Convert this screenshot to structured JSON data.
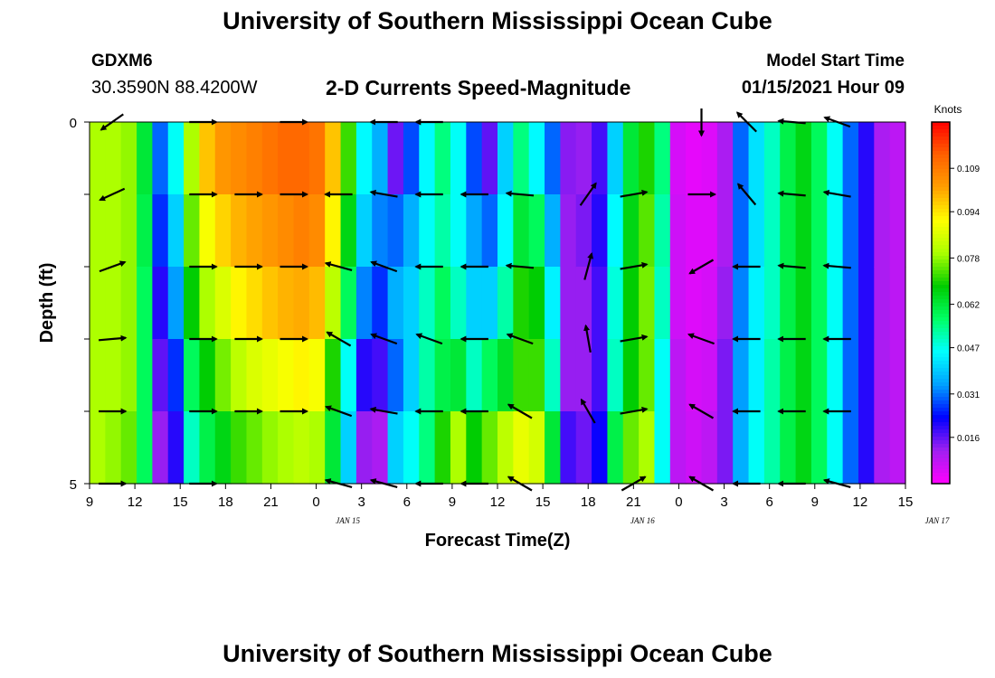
{
  "header": {
    "title": "University of Southern Mississippi Ocean Cube",
    "station": "GDXM6",
    "coordinates": "30.3590N 88.4200W",
    "subtitle": "2-D Currents Speed-Magnitude",
    "model_start_label": "Model Start Time",
    "model_start_value": "01/15/2021 Hour 09"
  },
  "footer": {
    "title": "University of Southern Mississippi Ocean Cube"
  },
  "chart_data": {
    "type": "heatmap",
    "title": "2-D Currents Speed-Magnitude",
    "xlabel": "Forecast Time(Z)",
    "ylabel": "Depth (ft)",
    "x_tick_labels": [
      "9",
      "12",
      "15",
      "18",
      "21",
      "0",
      "3",
      "6",
      "9",
      "12",
      "15",
      "18",
      "21",
      "0",
      "3",
      "6",
      "9",
      "12",
      "15"
    ],
    "date_labels": [
      {
        "label": "JAN 15",
        "at_hour": 16.5
      },
      {
        "label": "JAN 16",
        "at_hour": 36
      },
      {
        "label": "JAN 17",
        "at_hour": 55.5
      }
    ],
    "xlim_hours": [
      0,
      54
    ],
    "y_tick_labels": [
      "0",
      "5"
    ],
    "ylim": [
      0,
      5
    ],
    "depth_layers": 5,
    "colorbar": {
      "unit": "Knots",
      "range": [
        0,
        0.125
      ],
      "tick_labels": [
        "0.109",
        "0.094",
        "0.078",
        "0.062",
        "0.047",
        "0.031",
        "0.016"
      ],
      "colors": [
        "#ff00ff",
        "#a020f0",
        "#0000ff",
        "#00a0ff",
        "#00ffff",
        "#00ff66",
        "#00cc00",
        "#aaff00",
        "#ffff00",
        "#ffa000",
        "#ff6000",
        "#ff0000"
      ]
    },
    "speed_columns": [
      [
        0.08,
        0.08,
        0.08,
        0.08,
        0.08
      ],
      [
        0.08,
        0.08,
        0.08,
        0.08,
        0.078
      ],
      [
        0.078,
        0.078,
        0.078,
        0.078,
        0.075
      ],
      [
        0.062,
        0.06,
        0.058,
        0.058,
        0.058
      ],
      [
        0.03,
        0.026,
        0.02,
        0.016,
        0.012
      ],
      [
        0.046,
        0.04,
        0.034,
        0.026,
        0.02
      ],
      [
        0.08,
        0.075,
        0.068,
        0.058,
        0.05
      ],
      [
        0.098,
        0.09,
        0.08,
        0.068,
        0.06
      ],
      [
        0.104,
        0.096,
        0.086,
        0.076,
        0.066
      ],
      [
        0.106,
        0.1,
        0.092,
        0.082,
        0.072
      ],
      [
        0.108,
        0.102,
        0.095,
        0.086,
        0.075
      ],
      [
        0.11,
        0.104,
        0.098,
        0.088,
        0.078
      ],
      [
        0.112,
        0.106,
        0.1,
        0.09,
        0.08
      ],
      [
        0.112,
        0.108,
        0.101,
        0.092,
        0.082
      ],
      [
        0.11,
        0.106,
        0.099,
        0.09,
        0.08
      ],
      [
        0.098,
        0.092,
        0.082,
        0.07,
        0.062
      ],
      [
        0.072,
        0.066,
        0.058,
        0.046,
        0.04
      ],
      [
        0.045,
        0.04,
        0.032,
        0.02,
        0.012
      ],
      [
        0.036,
        0.032,
        0.026,
        0.018,
        0.01
      ],
      [
        0.015,
        0.03,
        0.036,
        0.03,
        0.04
      ],
      [
        0.028,
        0.036,
        0.04,
        0.04,
        0.046
      ],
      [
        0.045,
        0.046,
        0.05,
        0.052,
        0.055
      ],
      [
        0.055,
        0.052,
        0.058,
        0.06,
        0.07
      ],
      [
        0.046,
        0.046,
        0.05,
        0.062,
        0.08
      ],
      [
        0.028,
        0.035,
        0.04,
        0.05,
        0.068
      ],
      [
        0.016,
        0.03,
        0.04,
        0.058,
        0.075
      ],
      [
        0.04,
        0.045,
        0.052,
        0.064,
        0.082
      ],
      [
        0.055,
        0.062,
        0.07,
        0.072,
        0.088
      ],
      [
        0.045,
        0.058,
        0.068,
        0.072,
        0.085
      ],
      [
        0.03,
        0.036,
        0.044,
        0.05,
        0.062
      ],
      [
        0.013,
        0.012,
        0.012,
        0.012,
        0.018
      ],
      [
        0.012,
        0.014,
        0.012,
        0.012,
        0.015
      ],
      [
        0.018,
        0.02,
        0.018,
        0.018,
        0.022
      ],
      [
        0.04,
        0.045,
        0.048,
        0.05,
        0.06
      ],
      [
        0.062,
        0.066,
        0.068,
        0.068,
        0.075
      ],
      [
        0.07,
        0.074,
        0.076,
        0.075,
        0.08
      ],
      [
        0.055,
        0.052,
        0.05,
        0.046,
        0.046
      ],
      [
        0.005,
        0.006,
        0.006,
        0.008,
        0.008
      ],
      [
        0.003,
        0.004,
        0.004,
        0.005,
        0.006
      ],
      [
        0.004,
        0.004,
        0.005,
        0.006,
        0.008
      ],
      [
        0.01,
        0.01,
        0.012,
        0.014,
        0.014
      ],
      [
        0.03,
        0.03,
        0.032,
        0.034,
        0.036
      ],
      [
        0.042,
        0.042,
        0.044,
        0.044,
        0.046
      ],
      [
        0.05,
        0.05,
        0.05,
        0.052,
        0.052
      ],
      [
        0.06,
        0.06,
        0.06,
        0.06,
        0.06
      ],
      [
        0.066,
        0.066,
        0.066,
        0.066,
        0.066
      ],
      [
        0.058,
        0.058,
        0.058,
        0.058,
        0.058
      ],
      [
        0.046,
        0.046,
        0.046,
        0.046,
        0.046
      ],
      [
        0.03,
        0.03,
        0.03,
        0.03,
        0.03
      ],
      [
        0.02,
        0.02,
        0.02,
        0.02,
        0.02
      ],
      [
        0.01,
        0.01,
        0.01,
        0.01,
        0.01
      ],
      [
        0.008,
        0.008,
        0.008,
        0.008,
        0.008
      ]
    ],
    "vectors": [
      {
        "hour": 1.5,
        "depth": 0,
        "dir_deg": 215
      },
      {
        "hour": 1.5,
        "depth": 1,
        "dir_deg": 205
      },
      {
        "hour": 1.5,
        "depth": 2,
        "dir_deg": 20
      },
      {
        "hour": 1.5,
        "depth": 3,
        "dir_deg": 5
      },
      {
        "hour": 1.5,
        "depth": 4,
        "dir_deg": 0
      },
      {
        "hour": 1.5,
        "depth": 5,
        "dir_deg": 0
      },
      {
        "hour": 7.5,
        "depth": 0,
        "dir_deg": 0
      },
      {
        "hour": 7.5,
        "depth": 1,
        "dir_deg": 0
      },
      {
        "hour": 7.5,
        "depth": 2,
        "dir_deg": 0
      },
      {
        "hour": 7.5,
        "depth": 3,
        "dir_deg": 0
      },
      {
        "hour": 7.5,
        "depth": 4,
        "dir_deg": 0
      },
      {
        "hour": 7.5,
        "depth": 5,
        "dir_deg": 0
      },
      {
        "hour": 10.5,
        "depth": 1,
        "dir_deg": 0
      },
      {
        "hour": 10.5,
        "depth": 2,
        "dir_deg": 0
      },
      {
        "hour": 10.5,
        "depth": 3,
        "dir_deg": 0
      },
      {
        "hour": 10.5,
        "depth": 4,
        "dir_deg": 0
      },
      {
        "hour": 13.5,
        "depth": 0,
        "dir_deg": 0
      },
      {
        "hour": 13.5,
        "depth": 1,
        "dir_deg": 0
      },
      {
        "hour": 13.5,
        "depth": 2,
        "dir_deg": 0
      },
      {
        "hour": 13.5,
        "depth": 3,
        "dir_deg": 0
      },
      {
        "hour": 13.5,
        "depth": 4,
        "dir_deg": 0
      },
      {
        "hour": 16.5,
        "depth": 1,
        "dir_deg": 180
      },
      {
        "hour": 16.5,
        "depth": 2,
        "dir_deg": 165
      },
      {
        "hour": 16.5,
        "depth": 3,
        "dir_deg": 150
      },
      {
        "hour": 16.5,
        "depth": 4,
        "dir_deg": 160
      },
      {
        "hour": 16.5,
        "depth": 5,
        "dir_deg": 165
      },
      {
        "hour": 19.5,
        "depth": 0,
        "dir_deg": 180
      },
      {
        "hour": 19.5,
        "depth": 1,
        "dir_deg": 170
      },
      {
        "hour": 19.5,
        "depth": 2,
        "dir_deg": 160
      },
      {
        "hour": 19.5,
        "depth": 3,
        "dir_deg": 160
      },
      {
        "hour": 19.5,
        "depth": 4,
        "dir_deg": 170
      },
      {
        "hour": 19.5,
        "depth": 5,
        "dir_deg": 165
      },
      {
        "hour": 22.5,
        "depth": 0,
        "dir_deg": 180
      },
      {
        "hour": 22.5,
        "depth": 1,
        "dir_deg": 180
      },
      {
        "hour": 22.5,
        "depth": 2,
        "dir_deg": 180
      },
      {
        "hour": 22.5,
        "depth": 3,
        "dir_deg": 160
      },
      {
        "hour": 22.5,
        "depth": 4,
        "dir_deg": 180
      },
      {
        "hour": 22.5,
        "depth": 5,
        "dir_deg": 180
      },
      {
        "hour": 25.5,
        "depth": 1,
        "dir_deg": 180
      },
      {
        "hour": 25.5,
        "depth": 2,
        "dir_deg": 180
      },
      {
        "hour": 25.5,
        "depth": 3,
        "dir_deg": 180
      },
      {
        "hour": 25.5,
        "depth": 4,
        "dir_deg": 180
      },
      {
        "hour": 25.5,
        "depth": 5,
        "dir_deg": 180
      },
      {
        "hour": 28.5,
        "depth": 1,
        "dir_deg": 175
      },
      {
        "hour": 28.5,
        "depth": 2,
        "dir_deg": 175
      },
      {
        "hour": 28.5,
        "depth": 3,
        "dir_deg": 160
      },
      {
        "hour": 28.5,
        "depth": 4,
        "dir_deg": 150
      },
      {
        "hour": 28.5,
        "depth": 5,
        "dir_deg": 150
      },
      {
        "hour": 33,
        "depth": 1,
        "dir_deg": 55
      },
      {
        "hour": 33,
        "depth": 2,
        "dir_deg": 75
      },
      {
        "hour": 33,
        "depth": 3,
        "dir_deg": 100
      },
      {
        "hour": 33,
        "depth": 4,
        "dir_deg": 120
      },
      {
        "hour": 36,
        "depth": 1,
        "dir_deg": 10
      },
      {
        "hour": 36,
        "depth": 2,
        "dir_deg": 10
      },
      {
        "hour": 36,
        "depth": 3,
        "dir_deg": 10
      },
      {
        "hour": 36,
        "depth": 4,
        "dir_deg": 10
      },
      {
        "hour": 36,
        "depth": 5,
        "dir_deg": 30
      },
      {
        "hour": 40.5,
        "depth": 0,
        "dir_deg": 270
      },
      {
        "hour": 40.5,
        "depth": 1,
        "dir_deg": 0
      },
      {
        "hour": 40.5,
        "depth": 2,
        "dir_deg": 210
      },
      {
        "hour": 40.5,
        "depth": 3,
        "dir_deg": 160
      },
      {
        "hour": 40.5,
        "depth": 4,
        "dir_deg": 150
      },
      {
        "hour": 40.5,
        "depth": 5,
        "dir_deg": 150
      },
      {
        "hour": 43.5,
        "depth": 0,
        "dir_deg": 135
      },
      {
        "hour": 43.5,
        "depth": 1,
        "dir_deg": 130
      },
      {
        "hour": 43.5,
        "depth": 2,
        "dir_deg": 180
      },
      {
        "hour": 43.5,
        "depth": 3,
        "dir_deg": 180
      },
      {
        "hour": 43.5,
        "depth": 4,
        "dir_deg": 180
      },
      {
        "hour": 43.5,
        "depth": 5,
        "dir_deg": 180
      },
      {
        "hour": 46.5,
        "depth": 0,
        "dir_deg": 175
      },
      {
        "hour": 46.5,
        "depth": 1,
        "dir_deg": 175
      },
      {
        "hour": 46.5,
        "depth": 2,
        "dir_deg": 175
      },
      {
        "hour": 46.5,
        "depth": 3,
        "dir_deg": 180
      },
      {
        "hour": 46.5,
        "depth": 4,
        "dir_deg": 180
      },
      {
        "hour": 46.5,
        "depth": 5,
        "dir_deg": 180
      },
      {
        "hour": 49.5,
        "depth": 0,
        "dir_deg": 160
      },
      {
        "hour": 49.5,
        "depth": 1,
        "dir_deg": 170
      },
      {
        "hour": 49.5,
        "depth": 2,
        "dir_deg": 175
      },
      {
        "hour": 49.5,
        "depth": 3,
        "dir_deg": 180
      },
      {
        "hour": 49.5,
        "depth": 4,
        "dir_deg": 180
      },
      {
        "hour": 49.5,
        "depth": 5,
        "dir_deg": 165
      }
    ]
  }
}
